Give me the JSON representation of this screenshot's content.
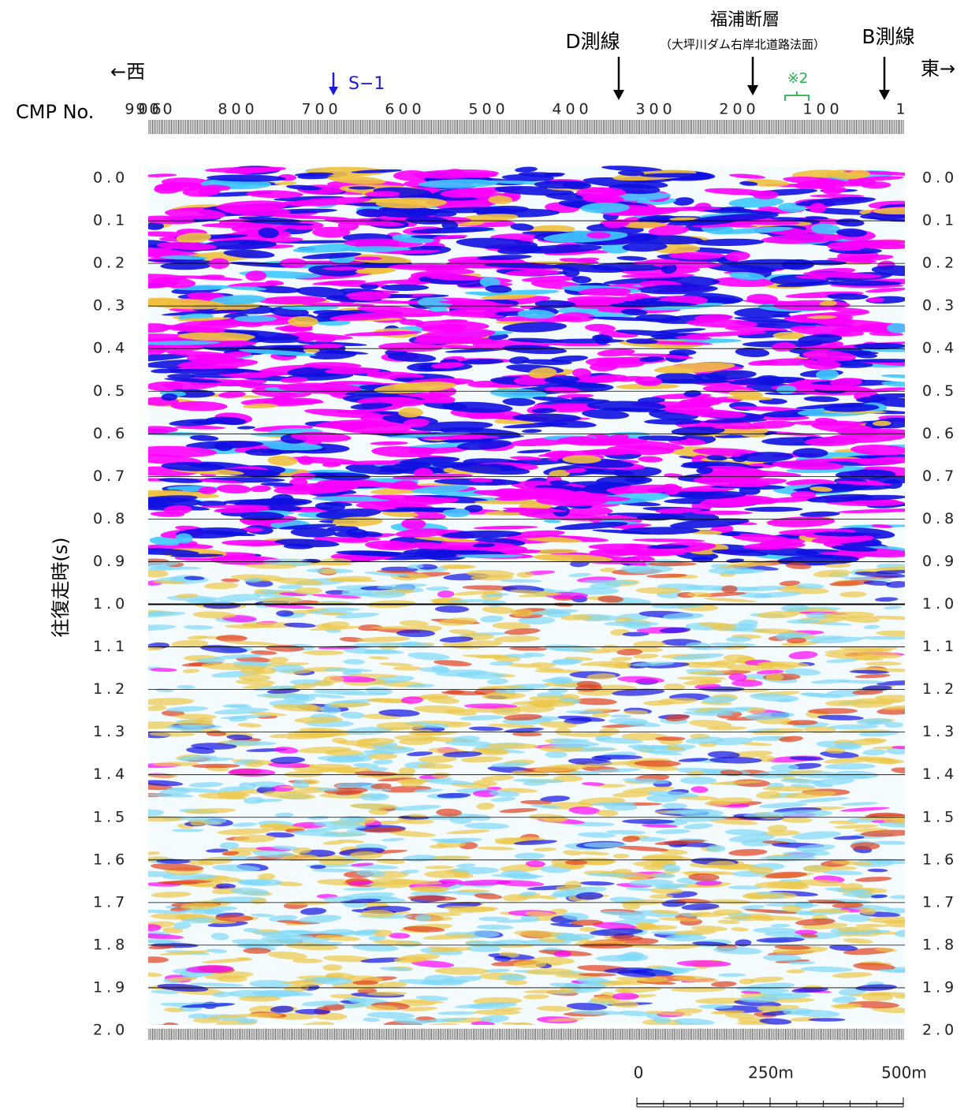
{
  "direction": {
    "west": "←西",
    "east": "東→"
  },
  "axis_x": {
    "label": "CMP No.",
    "ticks": [
      "906",
      "900",
      "800",
      "700",
      "600",
      "500",
      "400",
      "300",
      "200",
      "100",
      "1"
    ]
  },
  "axis_y": {
    "label": "往復走時(s)",
    "ticks": [
      "0.0",
      "0.1",
      "0.2",
      "0.3",
      "0.4",
      "0.5",
      "0.6",
      "0.7",
      "0.8",
      "0.9",
      "1.0",
      "1.1",
      "1.2",
      "1.3",
      "1.4",
      "1.5",
      "1.6",
      "1.7",
      "1.8",
      "1.9",
      "2.0"
    ]
  },
  "annotations": {
    "d_line": "D測線",
    "fault": "福浦断層",
    "fault_note": "（大坪川ダム右岸北道路法面）",
    "b_line": "B測線",
    "s1": "S−1",
    "note2": "※2"
  },
  "scale_bar": {
    "labels": [
      "0",
      "250m",
      "500m"
    ]
  }
}
